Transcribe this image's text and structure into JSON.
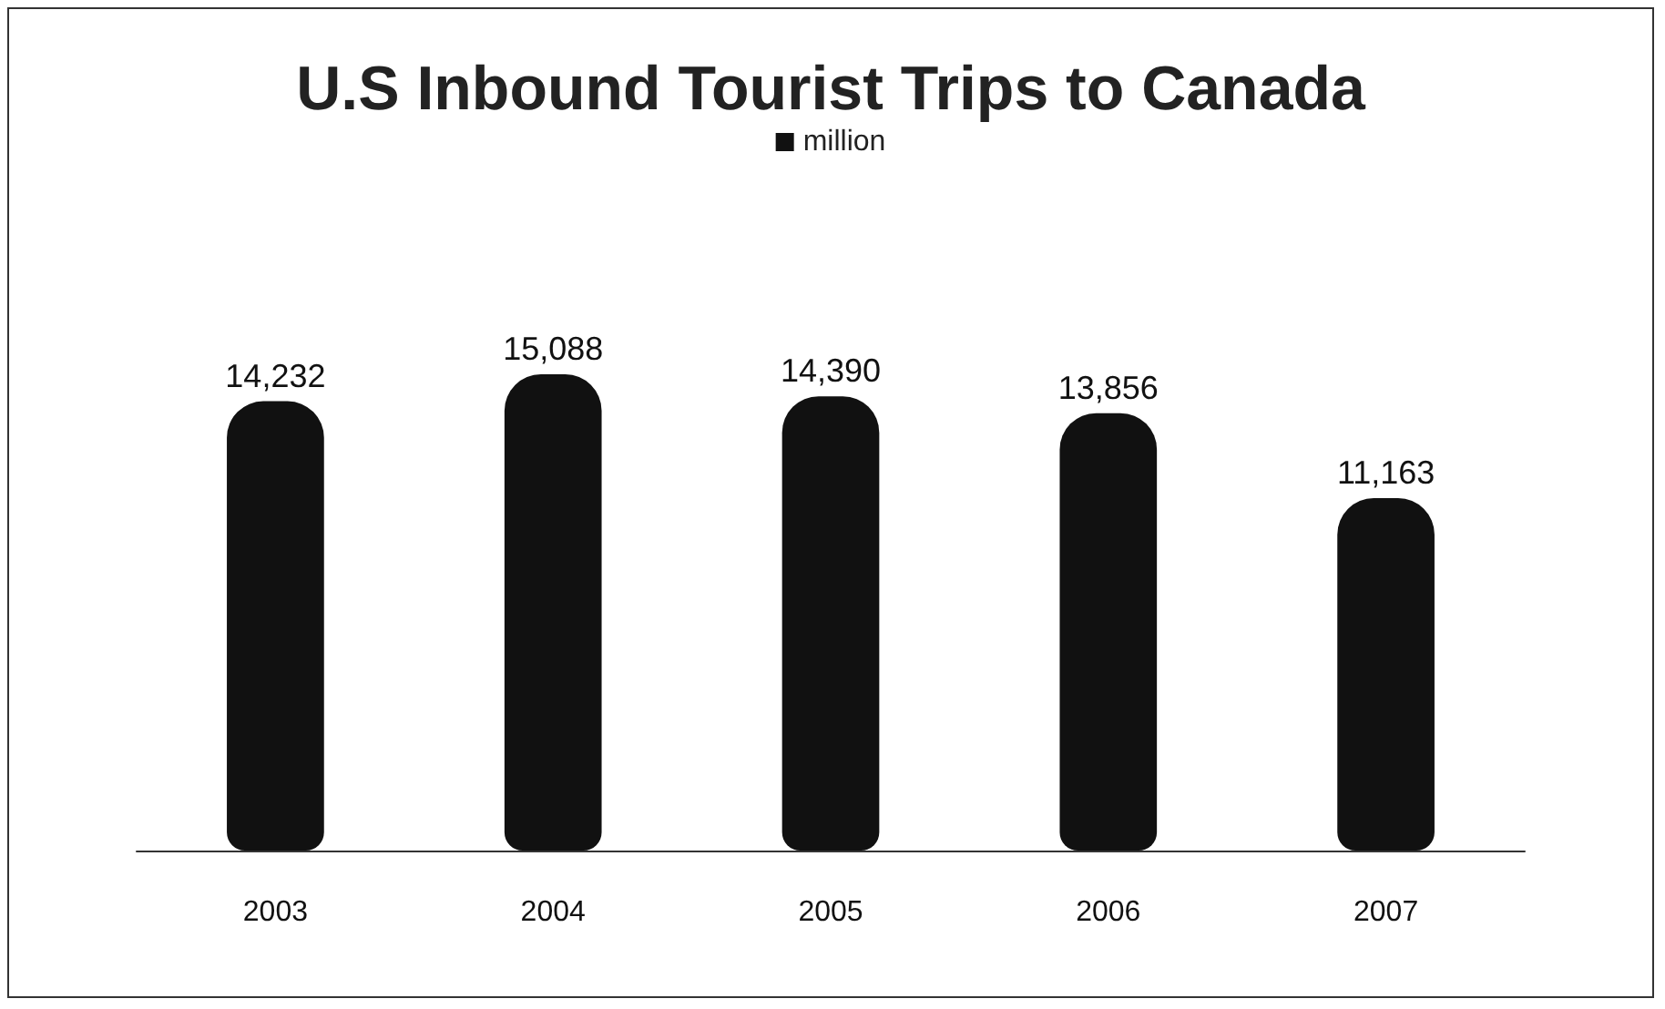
{
  "chart_data": {
    "type": "bar",
    "title": "U.S Inbound Tourist Trips to Canada",
    "categories": [
      "2003",
      "2004",
      "2005",
      "2006",
      "2007"
    ],
    "series": [
      {
        "name": "million",
        "color": "#111111",
        "values": [
          14232,
          15088,
          14390,
          13856,
          11163
        ],
        "value_labels": [
          "14,232",
          "15,088",
          "14,390",
          "13,856",
          "11,163"
        ]
      }
    ],
    "legend": "top"
  }
}
